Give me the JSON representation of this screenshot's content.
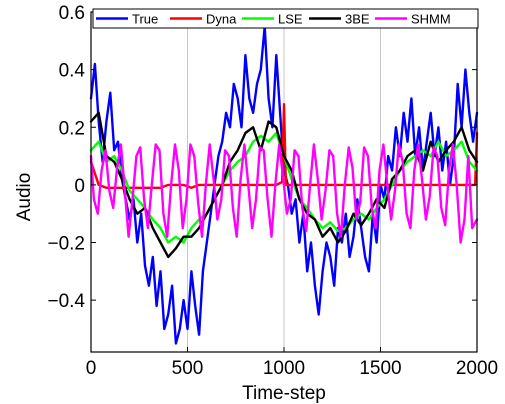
{
  "chart_data": {
    "type": "line",
    "xlabel": "Time-step",
    "ylabel": "Audio",
    "xlim": [
      0,
      2000
    ],
    "ylim": [
      -0.58,
      0.6
    ],
    "xticks": [
      0,
      500,
      1000,
      1500,
      2000
    ],
    "xtick_labels": [
      "0",
      "500",
      "1000",
      "1500",
      "2000"
    ],
    "yticks": [
      -0.4,
      -0.2,
      0,
      0.2,
      0.4,
      0.6
    ],
    "ytick_labels": [
      "−0.4",
      "−0.2",
      "0",
      "0.2",
      "0.4",
      "0.6"
    ],
    "grid": "vertical lines at x ticks",
    "legend_position": "top",
    "series": [
      {
        "name": "True",
        "color": "#0000ff",
        "x": [
          0,
          20,
          40,
          60,
          80,
          100,
          120,
          140,
          160,
          180,
          200,
          220,
          240,
          260,
          280,
          300,
          320,
          340,
          360,
          380,
          400,
          420,
          440,
          460,
          480,
          500,
          520,
          540,
          560,
          580,
          600,
          620,
          640,
          660,
          680,
          700,
          720,
          740,
          760,
          780,
          800,
          820,
          840,
          860,
          880,
          900,
          920,
          940,
          960,
          980,
          1000,
          1020,
          1040,
          1060,
          1080,
          1100,
          1120,
          1140,
          1160,
          1180,
          1200,
          1220,
          1240,
          1260,
          1280,
          1300,
          1320,
          1340,
          1360,
          1380,
          1400,
          1420,
          1440,
          1460,
          1480,
          1500,
          1520,
          1540,
          1560,
          1580,
          1600,
          1620,
          1640,
          1660,
          1680,
          1700,
          1720,
          1740,
          1760,
          1780,
          1800,
          1820,
          1840,
          1860,
          1880,
          1900,
          1920,
          1940,
          1960,
          1980,
          2000
        ],
        "y": [
          0.3,
          0.42,
          0.22,
          0.08,
          0.22,
          0.32,
          0.12,
          0.15,
          0.02,
          -0.05,
          -0.12,
          -0.05,
          -0.2,
          -0.1,
          -0.28,
          -0.35,
          -0.25,
          -0.42,
          -0.3,
          -0.5,
          -0.45,
          -0.35,
          -0.55,
          -0.5,
          -0.4,
          -0.5,
          -0.3,
          -0.42,
          -0.52,
          -0.3,
          -0.2,
          -0.1,
          0.0,
          0.1,
          0.15,
          0.25,
          0.2,
          0.35,
          0.3,
          0.2,
          0.45,
          0.3,
          0.25,
          0.35,
          0.4,
          0.55,
          0.3,
          0.2,
          0.45,
          0.25,
          0.05,
          0.0,
          -0.1,
          -0.05,
          -0.2,
          -0.1,
          -0.3,
          -0.2,
          -0.35,
          -0.45,
          -0.3,
          -0.2,
          -0.25,
          -0.35,
          -0.15,
          -0.2,
          -0.1,
          -0.25,
          -0.18,
          -0.05,
          -0.15,
          -0.25,
          -0.3,
          -0.1,
          -0.2,
          0.0,
          -0.05,
          0.1,
          0.05,
          0.2,
          0.1,
          0.25,
          0.15,
          0.3,
          0.1,
          0.2,
          0.05,
          0.15,
          0.25,
          0.1,
          0.2,
          0.05,
          0.15,
          0.0,
          0.1,
          0.35,
          0.2,
          0.4,
          0.25,
          0.15,
          0.25
        ]
      },
      {
        "name": "Dyna",
        "color": "#ff0000",
        "x": [
          0,
          40,
          80,
          120,
          160,
          200,
          240,
          280,
          320,
          360,
          400,
          440,
          480,
          520,
          560,
          600,
          640,
          680,
          720,
          760,
          800,
          840,
          880,
          920,
          960,
          990,
          1000,
          1010,
          1040,
          1080,
          1120,
          1160,
          1200,
          1240,
          1280,
          1320,
          1360,
          1400,
          1440,
          1480,
          1520,
          1560,
          1600,
          1640,
          1680,
          1720,
          1760,
          1800,
          1840,
          1880,
          1920,
          1960,
          1990,
          2000
        ],
        "y": [
          0.08,
          0.0,
          -0.01,
          -0.01,
          -0.01,
          -0.01,
          -0.01,
          -0.01,
          -0.01,
          -0.01,
          0.0,
          0.0,
          0.0,
          -0.01,
          0.0,
          0.0,
          0.0,
          0.0,
          0.0,
          0.0,
          0.0,
          0.0,
          0.0,
          0.0,
          0.0,
          0.01,
          0.28,
          0.0,
          0.0,
          0.0,
          0.0,
          0.0,
          0.0,
          0.0,
          0.0,
          0.0,
          0.0,
          0.0,
          0.0,
          0.0,
          0.0,
          0.0,
          0.0,
          0.0,
          0.0,
          0.0,
          0.0,
          0.0,
          0.0,
          0.0,
          0.0,
          0.0,
          0.0,
          0.18
        ]
      },
      {
        "name": "LSE",
        "color": "#00ff00",
        "x": [
          0,
          40,
          80,
          120,
          160,
          200,
          240,
          280,
          320,
          360,
          400,
          440,
          480,
          520,
          560,
          600,
          640,
          680,
          720,
          760,
          800,
          840,
          880,
          920,
          960,
          1000,
          1040,
          1080,
          1120,
          1160,
          1200,
          1240,
          1280,
          1320,
          1360,
          1400,
          1440,
          1480,
          1520,
          1560,
          1600,
          1640,
          1680,
          1720,
          1760,
          1800,
          1840,
          1880,
          1920,
          1960,
          2000
        ],
        "y": [
          0.12,
          0.15,
          0.08,
          0.1,
          0.05,
          -0.02,
          -0.05,
          -0.08,
          -0.12,
          -0.15,
          -0.2,
          -0.18,
          -0.2,
          -0.15,
          -0.12,
          -0.1,
          -0.05,
          0.0,
          0.05,
          0.08,
          0.1,
          0.15,
          0.17,
          0.15,
          0.18,
          0.1,
          0.02,
          -0.05,
          -0.08,
          -0.12,
          -0.15,
          -0.13,
          -0.16,
          -0.15,
          -0.12,
          -0.1,
          -0.12,
          -0.08,
          -0.05,
          0.0,
          0.05,
          0.08,
          0.1,
          0.12,
          0.1,
          0.15,
          0.1,
          0.12,
          0.15,
          0.08,
          0.05
        ]
      },
      {
        "name": "3BE",
        "color": "#000000",
        "x": [
          0,
          40,
          80,
          120,
          160,
          200,
          240,
          280,
          320,
          360,
          400,
          440,
          480,
          520,
          560,
          600,
          640,
          680,
          720,
          760,
          800,
          840,
          880,
          920,
          960,
          1000,
          1040,
          1080,
          1120,
          1160,
          1200,
          1240,
          1280,
          1320,
          1360,
          1400,
          1440,
          1480,
          1520,
          1560,
          1600,
          1640,
          1680,
          1720,
          1760,
          1800,
          1840,
          1880,
          1920,
          1960,
          2000
        ],
        "y": [
          0.22,
          0.25,
          0.1,
          0.08,
          0.02,
          -0.05,
          -0.1,
          -0.08,
          -0.15,
          -0.2,
          -0.25,
          -0.22,
          -0.18,
          -0.18,
          -0.15,
          -0.1,
          -0.05,
          0.0,
          0.08,
          0.12,
          0.18,
          0.2,
          0.12,
          0.22,
          0.2,
          0.1,
          0.05,
          -0.05,
          -0.1,
          -0.12,
          -0.18,
          -0.15,
          -0.2,
          -0.16,
          -0.1,
          -0.14,
          -0.1,
          -0.05,
          -0.08,
          0.02,
          0.05,
          0.1,
          0.12,
          0.05,
          0.15,
          0.08,
          0.12,
          0.15,
          0.2,
          0.12,
          0.08
        ]
      },
      {
        "name": "SHMM",
        "color": "#ff00ff",
        "x": [
          0,
          15,
          35,
          55,
          75,
          95,
          115,
          135,
          155,
          175,
          195,
          215,
          235,
          255,
          275,
          295,
          315,
          335,
          355,
          375,
          395,
          415,
          435,
          455,
          475,
          495,
          515,
          535,
          555,
          575,
          595,
          615,
          635,
          655,
          675,
          695,
          715,
          735,
          755,
          775,
          795,
          815,
          835,
          855,
          875,
          895,
          915,
          935,
          955,
          975,
          995,
          1015,
          1035,
          1055,
          1075,
          1095,
          1115,
          1135,
          1155,
          1175,
          1195,
          1215,
          1235,
          1255,
          1275,
          1295,
          1315,
          1335,
          1355,
          1375,
          1395,
          1415,
          1435,
          1455,
          1475,
          1495,
          1515,
          1535,
          1555,
          1575,
          1595,
          1615,
          1635,
          1655,
          1675,
          1695,
          1715,
          1735,
          1755,
          1775,
          1795,
          1815,
          1835,
          1855,
          1875,
          1895,
          1915,
          1935,
          1955,
          1975,
          2000
        ],
        "y": [
          0.1,
          -0.05,
          -0.1,
          0.05,
          0.12,
          -0.02,
          -0.08,
          0.06,
          0.14,
          -0.02,
          -0.18,
          -0.05,
          0.1,
          0.13,
          -0.05,
          -0.15,
          0.0,
          0.14,
          0.12,
          -0.1,
          -0.18,
          0.0,
          0.14,
          0.05,
          -0.15,
          -0.05,
          0.14,
          0.1,
          -0.06,
          -0.18,
          0.0,
          0.14,
          0.02,
          -0.12,
          -0.05,
          0.12,
          0.1,
          -0.08,
          -0.18,
          0.02,
          0.14,
          0.0,
          -0.15,
          -0.05,
          0.13,
          0.12,
          -0.05,
          -0.18,
          0.0,
          0.14,
          0.03,
          -0.1,
          -0.05,
          0.12,
          0.1,
          -0.08,
          -0.16,
          0.0,
          0.14,
          0.02,
          -0.12,
          -0.02,
          0.12,
          0.1,
          -0.1,
          -0.18,
          0.0,
          0.13,
          0.06,
          -0.12,
          -0.06,
          0.13,
          0.1,
          -0.08,
          -0.15,
          0.05,
          0.14,
          0.0,
          -0.12,
          -0.02,
          0.14,
          0.08,
          -0.1,
          -0.15,
          0.05,
          0.14,
          0.02,
          -0.12,
          -0.04,
          0.13,
          0.1,
          -0.08,
          -0.14,
          0.05,
          0.14,
          0.0,
          -0.2,
          -0.12,
          0.1,
          -0.15,
          -0.12
        ]
      }
    ]
  }
}
